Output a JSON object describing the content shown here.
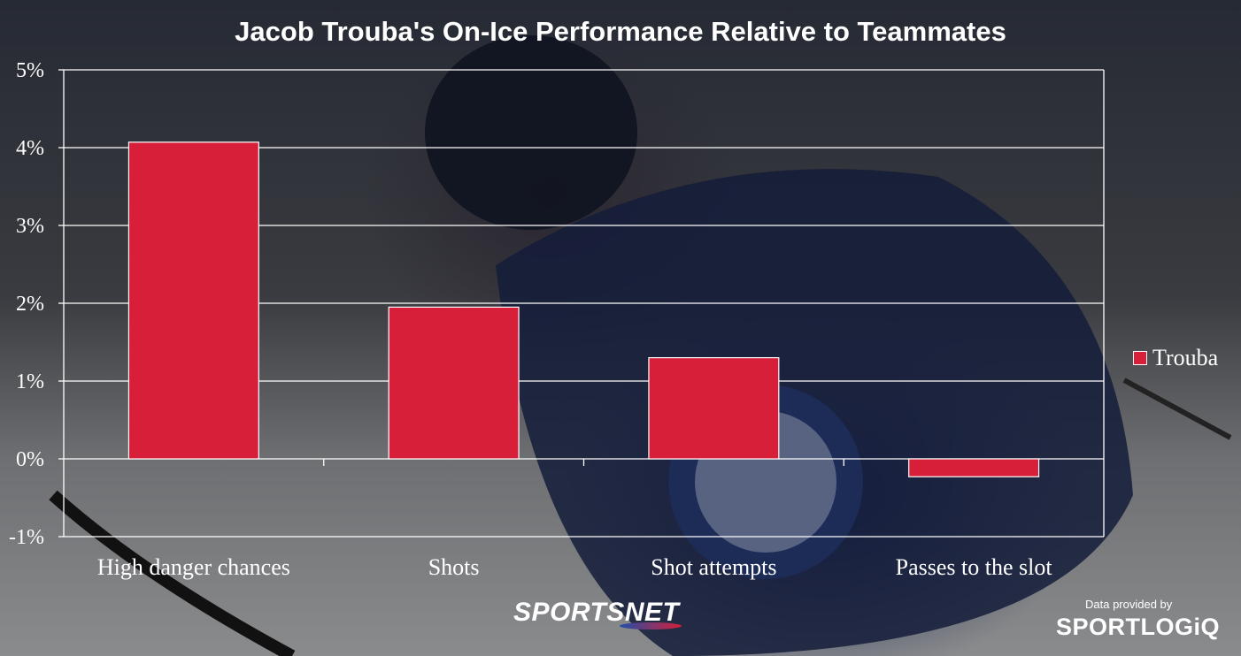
{
  "chart_data": {
    "type": "bar",
    "title": "Jacob Trouba's On-Ice Performance Relative to Teammates",
    "categories": [
      "High danger chances",
      "Shots",
      "Shot attempts",
      "Passes to the slot"
    ],
    "series": [
      {
        "name": "Trouba",
        "values": [
          4.07,
          1.95,
          1.3,
          -0.23
        ],
        "color": "#d81f3a"
      }
    ],
    "ylim": [
      -1,
      5
    ],
    "yticks": [
      "-1%",
      "0%",
      "1%",
      "2%",
      "3%",
      "4%",
      "5%"
    ],
    "grid": true,
    "legend_position": "right"
  },
  "branding": {
    "network": "SPORTSNET",
    "provider_note": "Data provided by",
    "provider": "SPORTLOGiQ"
  }
}
